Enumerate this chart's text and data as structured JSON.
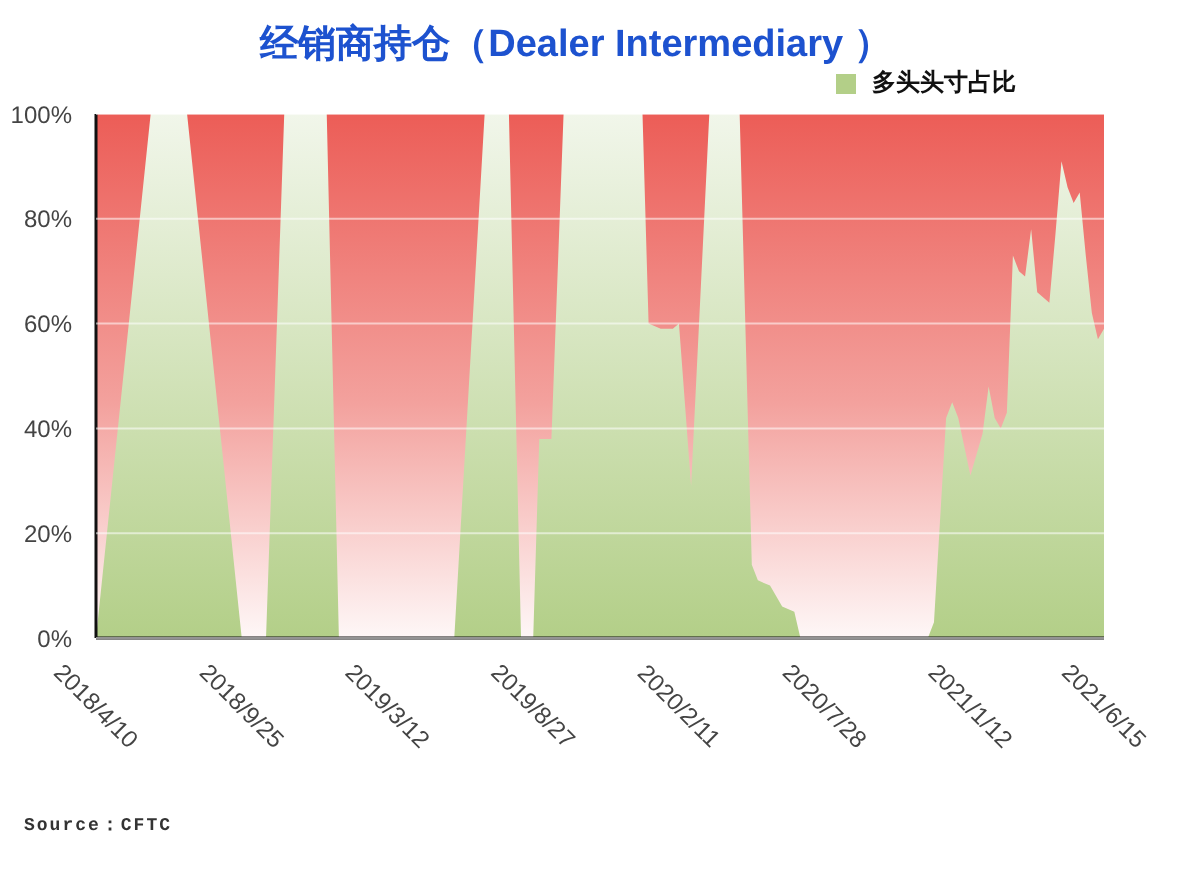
{
  "chart_data": {
    "type": "area",
    "title": "经销商持仓（Dealer Intermediary ）",
    "x": [
      "2018-04-10",
      "2018-06-12",
      "2018-07-24",
      "2018-09-25",
      "2018-10-23",
      "2018-11-13",
      "2019-01-01",
      "2019-01-15",
      "2019-05-28",
      "2019-07-02",
      "2019-07-30",
      "2019-08-13",
      "2019-08-27",
      "2019-09-03",
      "2019-09-17",
      "2019-10-01",
      "2019-12-31",
      "2020-01-07",
      "2020-01-21",
      "2020-02-04",
      "2020-02-11",
      "2020-02-25",
      "2020-03-17",
      "2020-04-21",
      "2020-05-05",
      "2020-05-12",
      "2020-05-26",
      "2020-06-09",
      "2020-06-23",
      "2020-06-30",
      "2020-11-24",
      "2020-12-01",
      "2020-12-15",
      "2020-12-22",
      "2020-12-29",
      "2021-01-12",
      "2021-01-26",
      "2021-02-02",
      "2021-02-09",
      "2021-02-16",
      "2021-02-23",
      "2021-03-02",
      "2021-03-09",
      "2021-03-16",
      "2021-03-23",
      "2021-03-30",
      "2021-04-06",
      "2021-04-13",
      "2021-04-20",
      "2021-04-27",
      "2021-05-04",
      "2021-05-11",
      "2021-05-18",
      "2021-05-25",
      "2021-06-01",
      "2021-06-08",
      "2021-06-15"
    ],
    "series": [
      {
        "name": "多头头寸占比",
        "color": "#b3cf88",
        "values": [
          0,
          100,
          100,
          0,
          0,
          100,
          100,
          0,
          0,
          100,
          100,
          0,
          0,
          38,
          38,
          100,
          100,
          60,
          59,
          59,
          60,
          29,
          100,
          100,
          14,
          11,
          10,
          6,
          5,
          0,
          0,
          3,
          42,
          45,
          42,
          31,
          39,
          48,
          42,
          40,
          43,
          73,
          70,
          69,
          78,
          66,
          65,
          64,
          77,
          91,
          86,
          83,
          85,
          73,
          62,
          57,
          59
        ]
      }
    ],
    "xlim": [
      "2018-04-10",
      "2021-06-15"
    ],
    "xticks": [
      {
        "value": "2018-04-10",
        "label": "2018/4/10"
      },
      {
        "value": "2018-09-25",
        "label": "2018/9/25"
      },
      {
        "value": "2019-03-12",
        "label": "2019/3/12"
      },
      {
        "value": "2019-08-27",
        "label": "2019/8/27"
      },
      {
        "value": "2020-02-11",
        "label": "2020/2/11"
      },
      {
        "value": "2020-07-28",
        "label": "2020/7/28"
      },
      {
        "value": "2021-01-12",
        "label": "2021/1/12"
      },
      {
        "value": "2021-06-15",
        "label": "2021/6/15"
      }
    ],
    "ylim": [
      0,
      100
    ],
    "yticks": [
      {
        "value": 0,
        "label": "0%"
      },
      {
        "value": 20,
        "label": "20%"
      },
      {
        "value": 40,
        "label": "40%"
      },
      {
        "value": 60,
        "label": "60%"
      },
      {
        "value": 80,
        "label": "80%"
      },
      {
        "value": 100,
        "label": "100%"
      }
    ],
    "grid": "y",
    "legend": "top right",
    "annotations": [
      "Source：CFTC"
    ]
  }
}
